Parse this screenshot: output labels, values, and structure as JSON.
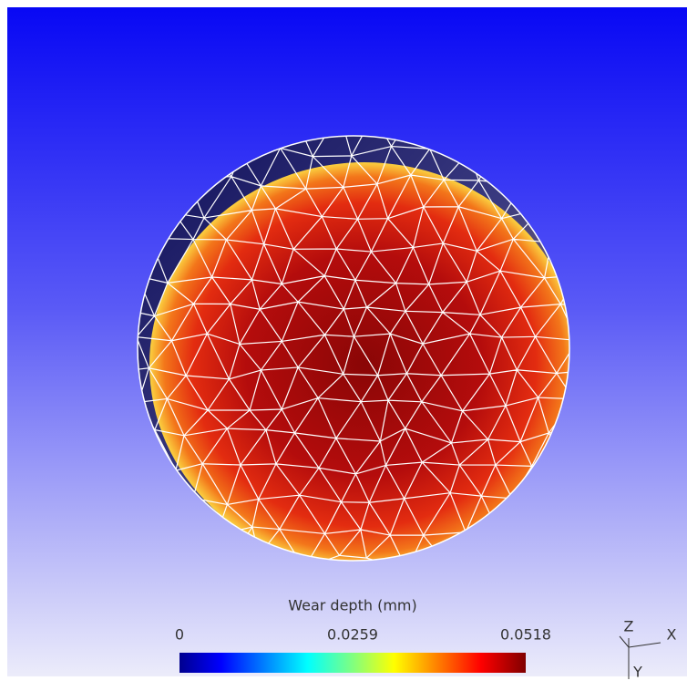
{
  "colorbar": {
    "title": "Wear depth (mm)",
    "ticks": [
      0,
      0.0259,
      0.0518
    ]
  },
  "axes_triad": {
    "labels": [
      "Z",
      "X",
      "Y"
    ]
  }
}
